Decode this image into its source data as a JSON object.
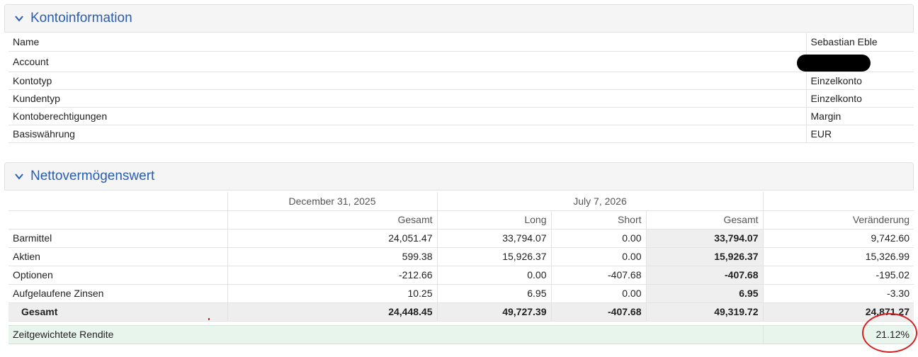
{
  "konto": {
    "title": "Kontoinformation",
    "rows": [
      {
        "label": "Name",
        "value": "Sebastian Eble"
      },
      {
        "label": "Account",
        "value": ""
      },
      {
        "label": "Kontotyp",
        "value": "Einzelkonto"
      },
      {
        "label": "Kundentyp",
        "value": "Einzelkonto"
      },
      {
        "label": "Kontoberechtigungen",
        "value": "Margin"
      },
      {
        "label": "Basiswährung",
        "value": "EUR"
      }
    ]
  },
  "nav": {
    "title": "Nettovermögenswert",
    "date1": "December 31, 2025",
    "date2": "July 7, 2026",
    "columns": [
      "Gesamt",
      "Long",
      "Short",
      "Gesamt",
      "Veränderung"
    ],
    "rows": [
      {
        "label": "Barmittel",
        "cells": [
          "24,051.47",
          "33,794.07",
          "0.00",
          "33,794.07",
          "9,742.60"
        ]
      },
      {
        "label": "Aktien",
        "cells": [
          "599.38",
          "15,926.37",
          "0.00",
          "15,926.37",
          "15,326.99"
        ]
      },
      {
        "label": "Optionen",
        "cells": [
          "-212.66",
          "0.00",
          "-407.68",
          "-407.68",
          "-195.02"
        ]
      },
      {
        "label": "Aufgelaufene Zinsen",
        "cells": [
          "10.25",
          "6.95",
          "0.00",
          "6.95",
          "-3.30"
        ]
      }
    ],
    "total": {
      "label": "Gesamt",
      "cells": [
        "24,448.45",
        "49,727.39",
        "-407.68",
        "49,319.72",
        "24,871.27"
      ]
    },
    "rendite": {
      "label": "Zeitgewichtete Rendite",
      "value": "21.12%"
    }
  },
  "colors": {
    "accent": "#2a5db0",
    "annotation": "#d42020",
    "rendite_bg": "#e8f5ec"
  }
}
